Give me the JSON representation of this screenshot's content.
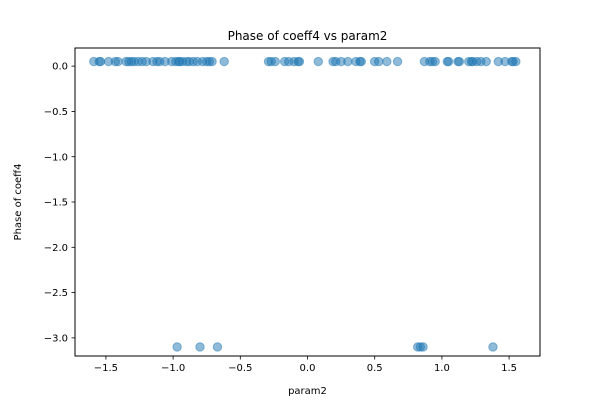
{
  "chart_data": {
    "type": "scatter",
    "title": "Phase of coeff4 vs param2",
    "xlabel": "param2",
    "ylabel": "Phase of coeff4",
    "xlim": [
      -1.73,
      1.73
    ],
    "ylim": [
      -3.2,
      0.2
    ],
    "xticks": [
      -1.5,
      -1.0,
      -0.5,
      0.0,
      0.5,
      1.0,
      1.5
    ],
    "xtick_labels": [
      "−1.5",
      "−1.0",
      "−0.5",
      "0.0",
      "0.5",
      "1.0",
      "1.5"
    ],
    "yticks": [
      0.0,
      -0.5,
      -1.0,
      -1.5,
      -2.0,
      -2.5,
      -3.0
    ],
    "ytick_labels": [
      "0.0",
      "−0.5",
      "−1.0",
      "−1.5",
      "−2.0",
      "−2.5",
      "−3.0"
    ],
    "grid": false,
    "marker_color": "#1f77b4",
    "marker_alpha": 0.5,
    "series": [
      {
        "x": [
          -1.59,
          -1.55,
          -1.54,
          -1.48,
          -1.43,
          -1.41,
          -1.35,
          -1.33,
          -1.31,
          -1.29,
          -1.26,
          -1.23,
          -1.2,
          -1.15,
          -1.12,
          -1.1,
          -1.06,
          -1.01,
          -0.98,
          -0.96,
          -0.95,
          -0.93,
          -0.9,
          -0.88,
          -0.85,
          -0.82,
          -0.78,
          -0.75,
          -0.73,
          -0.71,
          -0.62,
          -0.29,
          -0.27,
          -0.24,
          -0.17,
          -0.14,
          -0.1,
          -0.07,
          -0.06,
          0.08,
          0.19,
          0.21,
          0.25,
          0.3,
          0.36,
          0.39,
          0.4,
          0.5,
          0.53,
          0.59,
          0.67,
          0.87,
          0.91,
          0.93,
          0.95,
          1.04,
          1.05,
          1.12,
          1.13,
          1.2,
          1.22,
          1.23,
          1.26,
          1.29,
          1.33,
          1.42,
          1.47,
          1.52,
          1.53,
          1.55,
          -0.97,
          -0.8,
          -0.67,
          0.82,
          0.84,
          0.86,
          1.38
        ],
        "y": [
          0.05,
          0.05,
          0.05,
          0.05,
          0.05,
          0.05,
          0.05,
          0.05,
          0.05,
          0.05,
          0.05,
          0.05,
          0.05,
          0.05,
          0.05,
          0.05,
          0.05,
          0.05,
          0.05,
          0.05,
          0.05,
          0.05,
          0.05,
          0.05,
          0.05,
          0.05,
          0.05,
          0.05,
          0.05,
          0.05,
          0.05,
          0.05,
          0.05,
          0.05,
          0.05,
          0.05,
          0.05,
          0.05,
          0.05,
          0.05,
          0.05,
          0.05,
          0.05,
          0.05,
          0.05,
          0.05,
          0.05,
          0.05,
          0.05,
          0.05,
          0.05,
          0.05,
          0.05,
          0.05,
          0.05,
          0.05,
          0.05,
          0.05,
          0.05,
          0.05,
          0.05,
          0.05,
          0.05,
          0.05,
          0.05,
          0.05,
          0.05,
          0.05,
          0.05,
          0.05,
          -3.1,
          -3.1,
          -3.1,
          -3.1,
          -3.1,
          -3.1,
          -3.1
        ]
      }
    ]
  }
}
